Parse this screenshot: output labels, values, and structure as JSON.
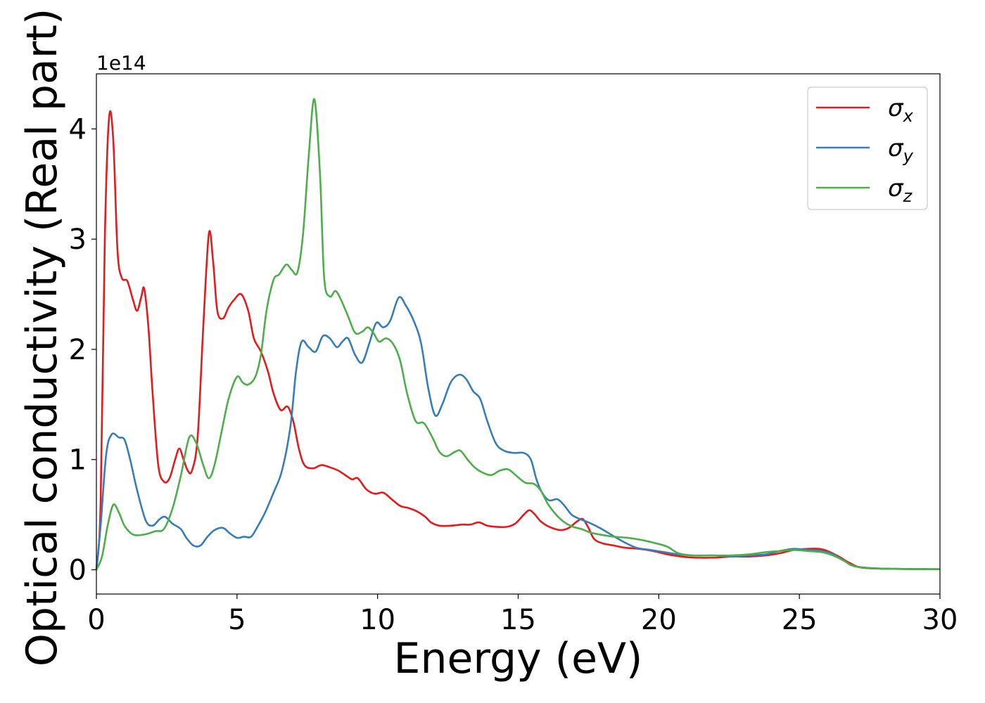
{
  "chart_data": {
    "type": "line",
    "xlabel": "Energy (eV)",
    "ylabel": "Optical conductivity (Real part)",
    "y_offset_label": "1e14",
    "y_multiplier": 100000000000000.0,
    "xlim": [
      0,
      30
    ],
    "ylim": [
      -0.22,
      4.5
    ],
    "xticks": [
      0,
      5,
      10,
      15,
      20,
      25,
      30
    ],
    "yticks": [
      0,
      1,
      2,
      3,
      4
    ],
    "grid": false,
    "legend_position": "top-right",
    "series": [
      {
        "name": "σx",
        "label_main": "σ",
        "label_sub": "x",
        "color": "#e41a1c",
        "points": [
          [
            0,
            0
          ],
          [
            0.15,
            0.6
          ],
          [
            0.3,
            3.0
          ],
          [
            0.45,
            4.1
          ],
          [
            0.6,
            3.9
          ],
          [
            0.75,
            2.9
          ],
          [
            0.9,
            2.65
          ],
          [
            1.1,
            2.62
          ],
          [
            1.3,
            2.45
          ],
          [
            1.45,
            2.35
          ],
          [
            1.6,
            2.48
          ],
          [
            1.7,
            2.55
          ],
          [
            1.85,
            2.2
          ],
          [
            2.0,
            1.6
          ],
          [
            2.2,
            0.95
          ],
          [
            2.4,
            0.8
          ],
          [
            2.6,
            0.83
          ],
          [
            2.8,
            1.0
          ],
          [
            2.95,
            1.1
          ],
          [
            3.1,
            1.0
          ],
          [
            3.25,
            0.9
          ],
          [
            3.4,
            0.9
          ],
          [
            3.6,
            1.2
          ],
          [
            3.8,
            2.2
          ],
          [
            4.0,
            3.05
          ],
          [
            4.15,
            2.8
          ],
          [
            4.3,
            2.35
          ],
          [
            4.5,
            2.28
          ],
          [
            4.7,
            2.38
          ],
          [
            4.9,
            2.45
          ],
          [
            5.15,
            2.5
          ],
          [
            5.4,
            2.35
          ],
          [
            5.6,
            2.1
          ],
          [
            5.85,
            1.98
          ],
          [
            6.1,
            1.8
          ],
          [
            6.3,
            1.6
          ],
          [
            6.55,
            1.45
          ],
          [
            6.8,
            1.48
          ],
          [
            7.0,
            1.35
          ],
          [
            7.2,
            1.1
          ],
          [
            7.4,
            0.95
          ],
          [
            7.7,
            0.92
          ],
          [
            8.0,
            0.95
          ],
          [
            8.3,
            0.93
          ],
          [
            8.6,
            0.9
          ],
          [
            8.9,
            0.85
          ],
          [
            9.1,
            0.82
          ],
          [
            9.3,
            0.83
          ],
          [
            9.6,
            0.73
          ],
          [
            9.9,
            0.69
          ],
          [
            10.2,
            0.7
          ],
          [
            10.5,
            0.64
          ],
          [
            10.8,
            0.58
          ],
          [
            11.1,
            0.56
          ],
          [
            11.4,
            0.53
          ],
          [
            11.7,
            0.48
          ],
          [
            11.9,
            0.43
          ],
          [
            12.2,
            0.4
          ],
          [
            12.6,
            0.4
          ],
          [
            13.0,
            0.41
          ],
          [
            13.3,
            0.41
          ],
          [
            13.6,
            0.43
          ],
          [
            13.9,
            0.4
          ],
          [
            14.2,
            0.39
          ],
          [
            14.6,
            0.39
          ],
          [
            14.9,
            0.42
          ],
          [
            15.2,
            0.5
          ],
          [
            15.4,
            0.54
          ],
          [
            15.6,
            0.5
          ],
          [
            15.8,
            0.44
          ],
          [
            16.1,
            0.39
          ],
          [
            16.5,
            0.36
          ],
          [
            16.8,
            0.38
          ],
          [
            17.1,
            0.44
          ],
          [
            17.3,
            0.46
          ],
          [
            17.5,
            0.38
          ],
          [
            17.7,
            0.28
          ],
          [
            18.0,
            0.24
          ],
          [
            18.4,
            0.22
          ],
          [
            18.8,
            0.2
          ],
          [
            19.3,
            0.19
          ],
          [
            19.8,
            0.17
          ],
          [
            20.3,
            0.14
          ],
          [
            20.8,
            0.12
          ],
          [
            21.3,
            0.11
          ],
          [
            22.0,
            0.11
          ],
          [
            22.6,
            0.12
          ],
          [
            23.2,
            0.12
          ],
          [
            23.8,
            0.13
          ],
          [
            24.3,
            0.15
          ],
          [
            24.8,
            0.18
          ],
          [
            25.3,
            0.19
          ],
          [
            25.7,
            0.19
          ],
          [
            26.0,
            0.17
          ],
          [
            26.4,
            0.12
          ],
          [
            26.8,
            0.06
          ],
          [
            27.2,
            0.02
          ],
          [
            28.0,
            0.01
          ],
          [
            30.0,
            0.005
          ]
        ]
      },
      {
        "name": "σy",
        "label_main": "σ",
        "label_sub": "y",
        "color": "#377eb8",
        "points": [
          [
            0,
            0
          ],
          [
            0.15,
            0.4
          ],
          [
            0.35,
            1.05
          ],
          [
            0.55,
            1.23
          ],
          [
            0.8,
            1.2
          ],
          [
            1.0,
            1.18
          ],
          [
            1.2,
            1.0
          ],
          [
            1.45,
            0.72
          ],
          [
            1.75,
            0.45
          ],
          [
            2.0,
            0.4
          ],
          [
            2.25,
            0.46
          ],
          [
            2.45,
            0.48
          ],
          [
            2.7,
            0.42
          ],
          [
            3.0,
            0.37
          ],
          [
            3.2,
            0.29
          ],
          [
            3.45,
            0.22
          ],
          [
            3.7,
            0.22
          ],
          [
            3.95,
            0.3
          ],
          [
            4.2,
            0.36
          ],
          [
            4.5,
            0.38
          ],
          [
            4.75,
            0.33
          ],
          [
            5.0,
            0.29
          ],
          [
            5.25,
            0.3
          ],
          [
            5.5,
            0.3
          ],
          [
            5.75,
            0.4
          ],
          [
            6.0,
            0.52
          ],
          [
            6.3,
            0.7
          ],
          [
            6.6,
            0.9
          ],
          [
            6.9,
            1.3
          ],
          [
            7.1,
            1.8
          ],
          [
            7.3,
            2.07
          ],
          [
            7.55,
            2.02
          ],
          [
            7.8,
            1.98
          ],
          [
            8.05,
            2.12
          ],
          [
            8.3,
            2.1
          ],
          [
            8.55,
            2.02
          ],
          [
            8.75,
            2.07
          ],
          [
            8.95,
            2.1
          ],
          [
            9.2,
            1.95
          ],
          [
            9.45,
            1.88
          ],
          [
            9.7,
            2.05
          ],
          [
            9.95,
            2.24
          ],
          [
            10.2,
            2.2
          ],
          [
            10.45,
            2.26
          ],
          [
            10.75,
            2.47
          ],
          [
            11.0,
            2.4
          ],
          [
            11.3,
            2.25
          ],
          [
            11.55,
            2.05
          ],
          [
            11.8,
            1.65
          ],
          [
            12.05,
            1.4
          ],
          [
            12.3,
            1.5
          ],
          [
            12.6,
            1.7
          ],
          [
            12.9,
            1.77
          ],
          [
            13.15,
            1.73
          ],
          [
            13.4,
            1.62
          ],
          [
            13.65,
            1.55
          ],
          [
            13.9,
            1.35
          ],
          [
            14.2,
            1.15
          ],
          [
            14.5,
            1.08
          ],
          [
            14.85,
            1.06
          ],
          [
            15.2,
            1.06
          ],
          [
            15.45,
            1.0
          ],
          [
            15.65,
            0.82
          ],
          [
            15.85,
            0.7
          ],
          [
            16.1,
            0.63
          ],
          [
            16.4,
            0.64
          ],
          [
            16.65,
            0.58
          ],
          [
            16.9,
            0.5
          ],
          [
            17.2,
            0.46
          ],
          [
            17.5,
            0.43
          ],
          [
            17.9,
            0.38
          ],
          [
            18.3,
            0.32
          ],
          [
            18.7,
            0.26
          ],
          [
            19.2,
            0.2
          ],
          [
            19.7,
            0.18
          ],
          [
            20.2,
            0.16
          ],
          [
            20.7,
            0.14
          ],
          [
            21.3,
            0.13
          ],
          [
            22.0,
            0.13
          ],
          [
            22.6,
            0.12
          ],
          [
            23.2,
            0.13
          ],
          [
            23.8,
            0.14
          ],
          [
            24.3,
            0.17
          ],
          [
            24.8,
            0.19
          ],
          [
            25.3,
            0.18
          ],
          [
            25.8,
            0.17
          ],
          [
            26.2,
            0.14
          ],
          [
            26.6,
            0.08
          ],
          [
            27.0,
            0.03
          ],
          [
            28.0,
            0.01
          ],
          [
            30.0,
            0.005
          ]
        ]
      },
      {
        "name": "σz",
        "label_main": "σ",
        "label_sub": "z",
        "color": "#4daf4a",
        "points": [
          [
            0,
            0
          ],
          [
            0.2,
            0.12
          ],
          [
            0.4,
            0.4
          ],
          [
            0.6,
            0.59
          ],
          [
            0.8,
            0.52
          ],
          [
            1.0,
            0.4
          ],
          [
            1.3,
            0.32
          ],
          [
            1.7,
            0.32
          ],
          [
            2.1,
            0.35
          ],
          [
            2.4,
            0.37
          ],
          [
            2.7,
            0.55
          ],
          [
            3.0,
            0.85
          ],
          [
            3.3,
            1.2
          ],
          [
            3.55,
            1.15
          ],
          [
            3.8,
            0.95
          ],
          [
            4.0,
            0.83
          ],
          [
            4.2,
            0.95
          ],
          [
            4.45,
            1.25
          ],
          [
            4.7,
            1.55
          ],
          [
            5.0,
            1.75
          ],
          [
            5.2,
            1.7
          ],
          [
            5.4,
            1.68
          ],
          [
            5.65,
            1.75
          ],
          [
            5.85,
            1.95
          ],
          [
            6.05,
            2.35
          ],
          [
            6.3,
            2.63
          ],
          [
            6.5,
            2.68
          ],
          [
            6.75,
            2.77
          ],
          [
            6.95,
            2.72
          ],
          [
            7.15,
            2.7
          ],
          [
            7.35,
            3.05
          ],
          [
            7.55,
            3.75
          ],
          [
            7.75,
            4.27
          ],
          [
            7.95,
            3.6
          ],
          [
            8.1,
            2.65
          ],
          [
            8.3,
            2.48
          ],
          [
            8.5,
            2.53
          ],
          [
            8.7,
            2.45
          ],
          [
            8.95,
            2.3
          ],
          [
            9.2,
            2.15
          ],
          [
            9.45,
            2.16
          ],
          [
            9.65,
            2.2
          ],
          [
            9.85,
            2.15
          ],
          [
            10.05,
            2.07
          ],
          [
            10.3,
            2.1
          ],
          [
            10.55,
            2.05
          ],
          [
            10.8,
            1.9
          ],
          [
            11.05,
            1.6
          ],
          [
            11.35,
            1.35
          ],
          [
            11.65,
            1.33
          ],
          [
            11.95,
            1.2
          ],
          [
            12.2,
            1.07
          ],
          [
            12.45,
            1.03
          ],
          [
            12.75,
            1.07
          ],
          [
            12.95,
            1.08
          ],
          [
            13.2,
            1.0
          ],
          [
            13.45,
            0.93
          ],
          [
            13.75,
            0.88
          ],
          [
            14.05,
            0.86
          ],
          [
            14.35,
            0.9
          ],
          [
            14.65,
            0.91
          ],
          [
            14.95,
            0.85
          ],
          [
            15.25,
            0.79
          ],
          [
            15.55,
            0.78
          ],
          [
            15.8,
            0.72
          ],
          [
            16.05,
            0.6
          ],
          [
            16.35,
            0.5
          ],
          [
            16.65,
            0.43
          ],
          [
            16.95,
            0.39
          ],
          [
            17.25,
            0.37
          ],
          [
            17.55,
            0.34
          ],
          [
            17.9,
            0.32
          ],
          [
            18.4,
            0.3
          ],
          [
            18.9,
            0.29
          ],
          [
            19.4,
            0.27
          ],
          [
            19.9,
            0.24
          ],
          [
            20.3,
            0.21
          ],
          [
            20.7,
            0.15
          ],
          [
            21.2,
            0.13
          ],
          [
            21.8,
            0.13
          ],
          [
            22.5,
            0.13
          ],
          [
            23.2,
            0.14
          ],
          [
            23.8,
            0.16
          ],
          [
            24.3,
            0.17
          ],
          [
            24.8,
            0.18
          ],
          [
            25.3,
            0.17
          ],
          [
            25.8,
            0.16
          ],
          [
            26.2,
            0.13
          ],
          [
            26.6,
            0.08
          ],
          [
            27.0,
            0.03
          ],
          [
            28.0,
            0.01
          ],
          [
            30.0,
            0.005
          ]
        ]
      }
    ]
  }
}
